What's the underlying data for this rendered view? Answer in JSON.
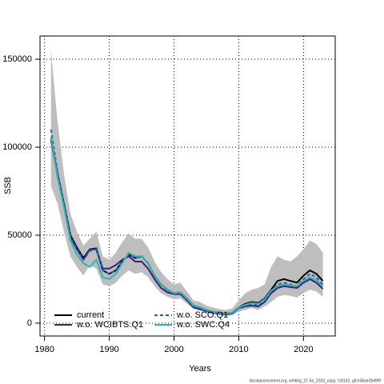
{
  "chart_data": {
    "type": "line",
    "xlabel": "Years",
    "ylabel": "SSB",
    "footnote": "stockassessment.org, whiting_27.6a_2023_copy, r18142, git:e36ae2b49f9",
    "x": [
      1981,
      1982,
      1983,
      1984,
      1985,
      1986,
      1987,
      1988,
      1989,
      1990,
      1991,
      1992,
      1993,
      1994,
      1995,
      1996,
      1997,
      1998,
      1999,
      2000,
      2001,
      2002,
      2003,
      2004,
      2005,
      2006,
      2007,
      2008,
      2009,
      2010,
      2011,
      2012,
      2013,
      2014,
      2015,
      2016,
      2017,
      2018,
      2019,
      2020,
      2021,
      2022,
      2023
    ],
    "band": {
      "color": "#bebebe",
      "upper": [
        155000,
        115000,
        85000,
        62000,
        52000,
        44000,
        48000,
        52000,
        38000,
        36000,
        40000,
        46000,
        51000,
        48000,
        48000,
        43000,
        35000,
        29000,
        25000,
        22000,
        23000,
        18000,
        13000,
        12000,
        10000,
        9000,
        8000,
        7500,
        8500,
        13000,
        17000,
        19000,
        20000,
        22000,
        32000,
        38000,
        36000,
        35000,
        38000,
        42000,
        47000,
        45000,
        40000
      ],
      "lower": [
        78000,
        68000,
        52000,
        38000,
        32000,
        27000,
        33000,
        31000,
        22000,
        21000,
        23000,
        27000,
        30000,
        28000,
        29000,
        26000,
        21000,
        17000,
        15000,
        13500,
        14000,
        11000,
        8000,
        7000,
        5500,
        5000,
        4500,
        4000,
        4500,
        6500,
        7500,
        8500,
        7500,
        9500,
        12000,
        15000,
        16000,
        15500,
        14500,
        17000,
        19000,
        18000,
        15000
      ]
    },
    "series": [
      {
        "name": "current",
        "color": "#000000",
        "dash": "",
        "values": [
          105000,
          85000,
          68000,
          50000,
          43000,
          37000,
          42000,
          42500,
          30000,
          28000,
          30000,
          35000,
          39000,
          37000,
          38000,
          34000,
          27000,
          22000,
          19000,
          17000,
          17500,
          14000,
          10000,
          9000,
          7500,
          6500,
          6000,
          5500,
          6000,
          9000,
          11000,
          12000,
          11500,
          14000,
          19000,
          24000,
          25000,
          24000,
          23000,
          27000,
          30000,
          28000,
          24000
        ]
      },
      {
        "name": "w.o. WCIBTS.Q1",
        "color": "#3b1f7a",
        "dash": "",
        "values": [
          104000,
          84000,
          67000,
          49000,
          42000,
          36000,
          42000,
          42000,
          31000,
          31000,
          33000,
          36000,
          38000,
          35000,
          35000,
          31000,
          25000,
          20000,
          17500,
          16500,
          16500,
          13000,
          9000,
          8000,
          7000,
          6000,
          5500,
          5000,
          5500,
          8500,
          9500,
          10000,
          9500,
          12000,
          17000,
          20000,
          21000,
          20500,
          20000,
          23000,
          25000,
          23000,
          19500
        ]
      },
      {
        "name": "w.o. SCO.Q1",
        "color": "#1f5fbf",
        "dash": "4 3",
        "values": [
          110000,
          86000,
          68000,
          49000,
          42000,
          36000,
          41000,
          42000,
          30000,
          28000,
          30000,
          35000,
          39000,
          37000,
          38000,
          34000,
          27000,
          22000,
          18500,
          17000,
          17000,
          13500,
          9500,
          8500,
          7000,
          6000,
          5500,
          5000,
          5500,
          8500,
          10000,
          11000,
          10500,
          13000,
          18000,
          22000,
          23000,
          22000,
          21000,
          25000,
          28000,
          26000,
          22000
        ]
      },
      {
        "name": "w.o. SWC.Q4",
        "color": "#2fb5b0",
        "dash": "",
        "values": [
          106000,
          83000,
          66000,
          47000,
          39000,
          34000,
          32000,
          36000,
          26000,
          25000,
          28000,
          34000,
          40000,
          38000,
          38000,
          34000,
          27000,
          22000,
          19000,
          17000,
          17500,
          14000,
          10000,
          9000,
          7500,
          6500,
          6000,
          5500,
          6000,
          9000,
          10500,
          11500,
          11000,
          13500,
          18500,
          21000,
          22000,
          21500,
          21000,
          24000,
          26000,
          24500,
          21000
        ]
      }
    ],
    "xlim": [
      1979.3,
      2024.9
    ],
    "xticks": [
      1980,
      1990,
      2000,
      2010,
      2020
    ],
    "ylim": [
      -7300,
      163200
    ],
    "yticks": [
      0,
      50000,
      100000,
      150000
    ],
    "grid": true,
    "legend": "bottom-left"
  }
}
